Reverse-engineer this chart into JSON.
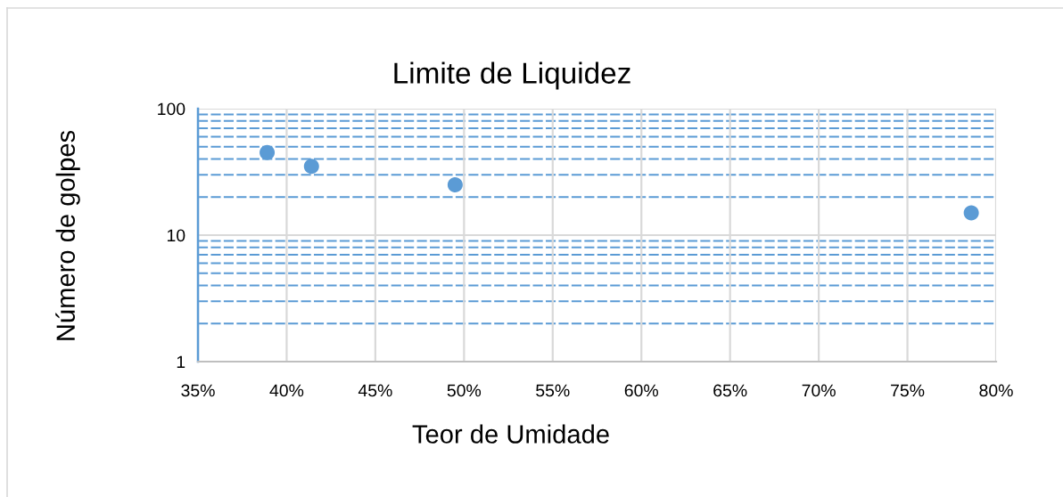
{
  "chart_data": {
    "type": "scatter",
    "title": "Limite de Liquidez",
    "xlabel": "Teor de Umidade",
    "ylabel": "Número de golpes",
    "x": [
      0.389,
      0.414,
      0.495,
      0.786
    ],
    "series": [
      {
        "color": "#5b9bd5",
        "values": [
          45,
          35,
          25,
          15
        ]
      }
    ],
    "marker": "circle",
    "log": "y",
    "grid": true,
    "xlim": [
      0.35,
      0.8
    ],
    "xticks": [
      {
        "value": 0.35,
        "label": "35%"
      },
      {
        "value": 0.4,
        "label": "40%"
      },
      {
        "value": 0.45,
        "label": "45%"
      },
      {
        "value": 0.5,
        "label": "50%"
      },
      {
        "value": 0.55,
        "label": "55%"
      },
      {
        "value": 0.6,
        "label": "60%"
      },
      {
        "value": 0.65,
        "label": "65%"
      },
      {
        "value": 0.7,
        "label": "70%"
      },
      {
        "value": 0.75,
        "label": "75%"
      },
      {
        "value": 0.8,
        "label": "80%"
      }
    ],
    "ylim": [
      1,
      100
    ],
    "yticks": [
      1,
      {
        "value": 2,
        "label": null
      },
      {
        "value": 3,
        "label": null
      },
      {
        "value": 4,
        "label": null
      },
      {
        "value": 5,
        "label": null
      },
      {
        "value": 6,
        "label": null
      },
      {
        "value": 7,
        "label": null
      },
      {
        "value": 8,
        "label": null
      },
      {
        "value": 9,
        "label": null
      },
      10,
      {
        "value": 20,
        "label": null
      },
      {
        "value": 30,
        "label": null
      },
      {
        "value": 40,
        "label": null
      },
      {
        "value": 50,
        "label": null
      },
      {
        "value": 60,
        "label": null
      },
      {
        "value": 70,
        "label": null
      },
      {
        "value": 80,
        "label": null
      },
      {
        "value": 90,
        "label": null
      },
      100
    ]
  }
}
